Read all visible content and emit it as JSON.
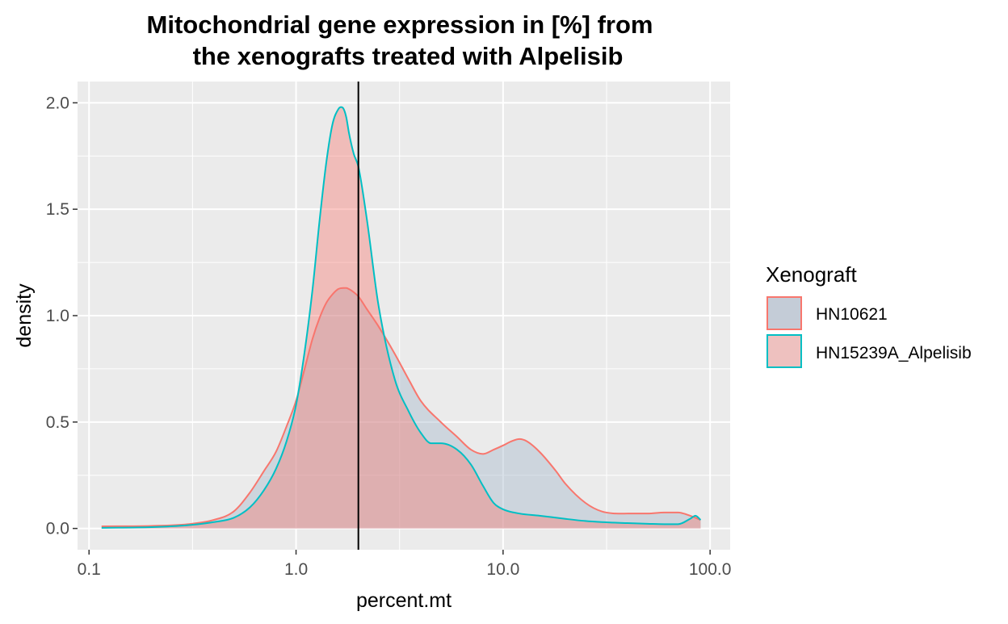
{
  "chart_data": {
    "type": "area",
    "title_lines": [
      "Mitochondrial gene expression in [%] from",
      "the xenografts treated with Alpelisib"
    ],
    "xlabel": "percent.mt",
    "ylabel": "density",
    "x_scale": "log10",
    "xlim": [
      0.088,
      125
    ],
    "ylim": [
      -0.1,
      2.1
    ],
    "x_ticks": [
      0.1,
      1,
      10,
      100
    ],
    "x_tick_labels": [
      "0.1",
      "1.0",
      "10.0",
      "100.0"
    ],
    "y_ticks": [
      0,
      0.5,
      1,
      1.5,
      2
    ],
    "y_tick_labels": [
      "0.0",
      "0.5",
      "1.0",
      "1.5",
      "2.0"
    ],
    "grid": true,
    "background": "#ebebeb",
    "vline_x": 2,
    "legend": {
      "title": "Xenograft",
      "position": "right",
      "entries": [
        {
          "label": "HN10621",
          "fill": "#c4ccd7",
          "stroke": "#f8766d"
        },
        {
          "label": "HN15239A_Alpelisib",
          "fill": "#eec1bf",
          "stroke": "#00bfc4"
        }
      ]
    },
    "series": [
      {
        "name": "HN10621",
        "line_color": "#f8766d",
        "fill_color": "#9fb3c8",
        "x": [
          0.115,
          0.2,
          0.3,
          0.4,
          0.5,
          0.6,
          0.7,
          0.8,
          0.9,
          1.0,
          1.1,
          1.2,
          1.3,
          1.4,
          1.5,
          1.6,
          1.7,
          1.75,
          1.8,
          1.9,
          2.0,
          2.2,
          2.5,
          3.0,
          3.5,
          4.0,
          5.0,
          6.0,
          7.0,
          8.0,
          9.0,
          10.0,
          11.0,
          12.0,
          13.0,
          15.0,
          18.0,
          20.0,
          25.0,
          30.0,
          40.0,
          50.0,
          60.0,
          70.0,
          80.0,
          90.0
        ],
        "y": [
          0.01,
          0.012,
          0.02,
          0.04,
          0.08,
          0.17,
          0.27,
          0.36,
          0.48,
          0.6,
          0.75,
          0.89,
          0.99,
          1.06,
          1.1,
          1.125,
          1.13,
          1.13,
          1.125,
          1.11,
          1.09,
          1.03,
          0.95,
          0.82,
          0.7,
          0.6,
          0.5,
          0.43,
          0.37,
          0.35,
          0.37,
          0.39,
          0.41,
          0.42,
          0.41,
          0.36,
          0.27,
          0.21,
          0.12,
          0.08,
          0.07,
          0.07,
          0.075,
          0.075,
          0.06,
          0.04
        ]
      },
      {
        "name": "HN15239A_Alpelisib",
        "line_color": "#00bfc4",
        "fill_color": "#f8766d",
        "x": [
          0.115,
          0.2,
          0.3,
          0.4,
          0.5,
          0.6,
          0.7,
          0.8,
          0.9,
          1.0,
          1.1,
          1.2,
          1.3,
          1.4,
          1.5,
          1.6,
          1.65,
          1.7,
          1.75,
          1.8,
          1.9,
          2.0,
          2.2,
          2.5,
          3.0,
          3.5,
          4.0,
          4.5,
          5.0,
          6.0,
          7.0,
          8.0,
          9.0,
          10.0,
          12.0,
          15.0,
          20.0,
          25.0,
          30.0,
          40.0,
          50.0,
          60.0,
          70.0,
          80.0,
          85.0,
          90.0
        ],
        "y": [
          0.003,
          0.006,
          0.015,
          0.03,
          0.05,
          0.1,
          0.18,
          0.28,
          0.41,
          0.58,
          0.83,
          1.12,
          1.45,
          1.72,
          1.9,
          1.97,
          1.98,
          1.97,
          1.93,
          1.86,
          1.76,
          1.7,
          1.45,
          1.05,
          0.7,
          0.55,
          0.45,
          0.4,
          0.4,
          0.37,
          0.3,
          0.2,
          0.12,
          0.09,
          0.07,
          0.06,
          0.045,
          0.035,
          0.03,
          0.025,
          0.022,
          0.02,
          0.02,
          0.045,
          0.06,
          0.04
        ]
      }
    ]
  }
}
